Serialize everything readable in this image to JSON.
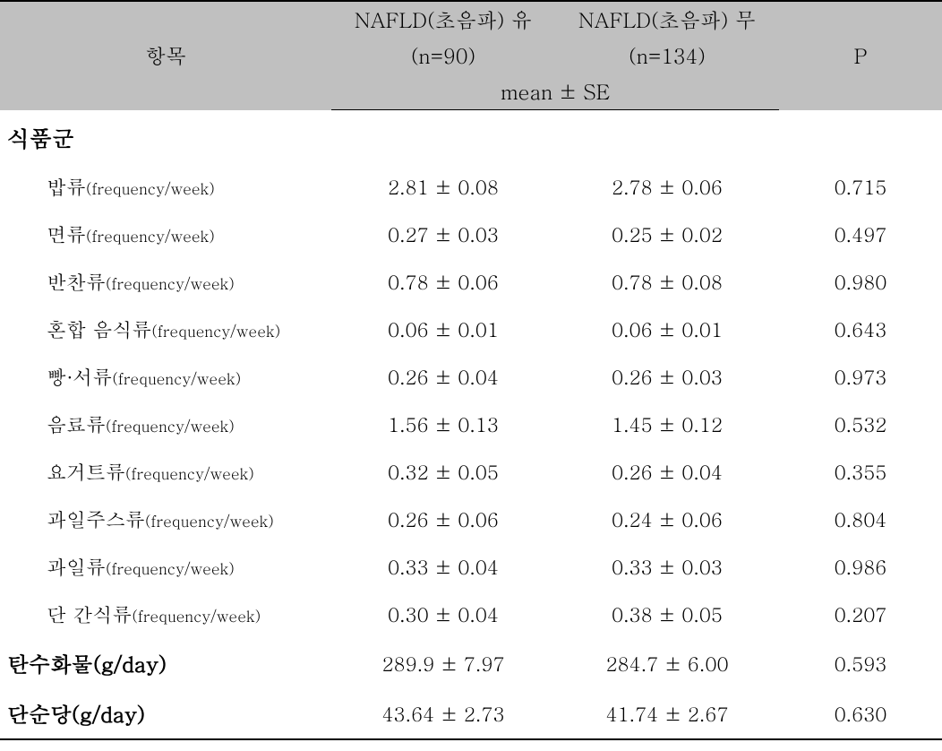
{
  "header": {
    "item": "항목",
    "group1_line1": "NAFLD(초음파) 유",
    "group1_line2": "(n=90)",
    "group2_line1": "NAFLD(초음파) 무",
    "group2_line2": "(n=134)",
    "mean_se": "mean ± SE",
    "p": "P"
  },
  "section": "식품군",
  "rows": [
    {
      "name": "밥류",
      "unit": "(frequency/week)",
      "g1": "2.81 ± 0.08",
      "g2": "2.78 ± 0.06",
      "p": "0.715"
    },
    {
      "name": "면류",
      "unit": "(frequency/week)",
      "g1": "0.27 ± 0.03",
      "g2": "0.25 ± 0.02",
      "p": "0.497"
    },
    {
      "name": "반찬류",
      "unit": "(frequency/week)",
      "g1": "0.78 ± 0.06",
      "g2": "0.78 ± 0.08",
      "p": "0.980"
    },
    {
      "name": "혼합 음식류",
      "unit": "(frequency/week)",
      "g1": "0.06 ± 0.01",
      "g2": "0.06 ± 0.01",
      "p": "0.643"
    },
    {
      "name": "빵·서류",
      "unit": "(frequency/week)",
      "g1": "0.26 ± 0.04",
      "g2": "0.26 ± 0.03",
      "p": "0.973"
    },
    {
      "name": "음료류",
      "unit": "(frequency/week)",
      "g1": "1.56 ± 0.13",
      "g2": "1.45 ± 0.12",
      "p": "0.532"
    },
    {
      "name": "요거트류",
      "unit": "(frequency/week)",
      "g1": "0.32 ± 0.05",
      "g2": "0.26 ± 0.04",
      "p": "0.355"
    },
    {
      "name": "과일주스류",
      "unit": "(frequency/week)",
      "g1": "0.26 ± 0.06",
      "g2": "0.24 ± 0.06",
      "p": "0.804"
    },
    {
      "name": "과일류",
      "unit": "(frequency/week)",
      "g1": "0.33 ± 0.04",
      "g2": "0.33 ± 0.03",
      "p": "0.986"
    },
    {
      "name": "단 간식류",
      "unit": "(frequency/week)",
      "g1": "0.30 ± 0.04",
      "g2": "0.38 ± 0.05",
      "p": "0.207"
    }
  ],
  "summary": [
    {
      "name": "탄수화물(g/day)",
      "g1": "289.9 ± 7.97",
      "g2": "284.7 ± 6.00",
      "p": "0.593"
    },
    {
      "name": "단순당(g/day)",
      "g1": "43.64 ± 2.73",
      "g2": "41.74 ± 2.67",
      "p": "0.630"
    }
  ],
  "colors": {
    "header_bg": "#c0c0c0",
    "border": "#000000",
    "text": "#000000",
    "background": "#ffffff"
  },
  "typography": {
    "header_fontsize": 23,
    "row_fontsize": 22,
    "section_fontsize": 25,
    "unit_fontsize": 17,
    "font_family": "Batang serif"
  }
}
